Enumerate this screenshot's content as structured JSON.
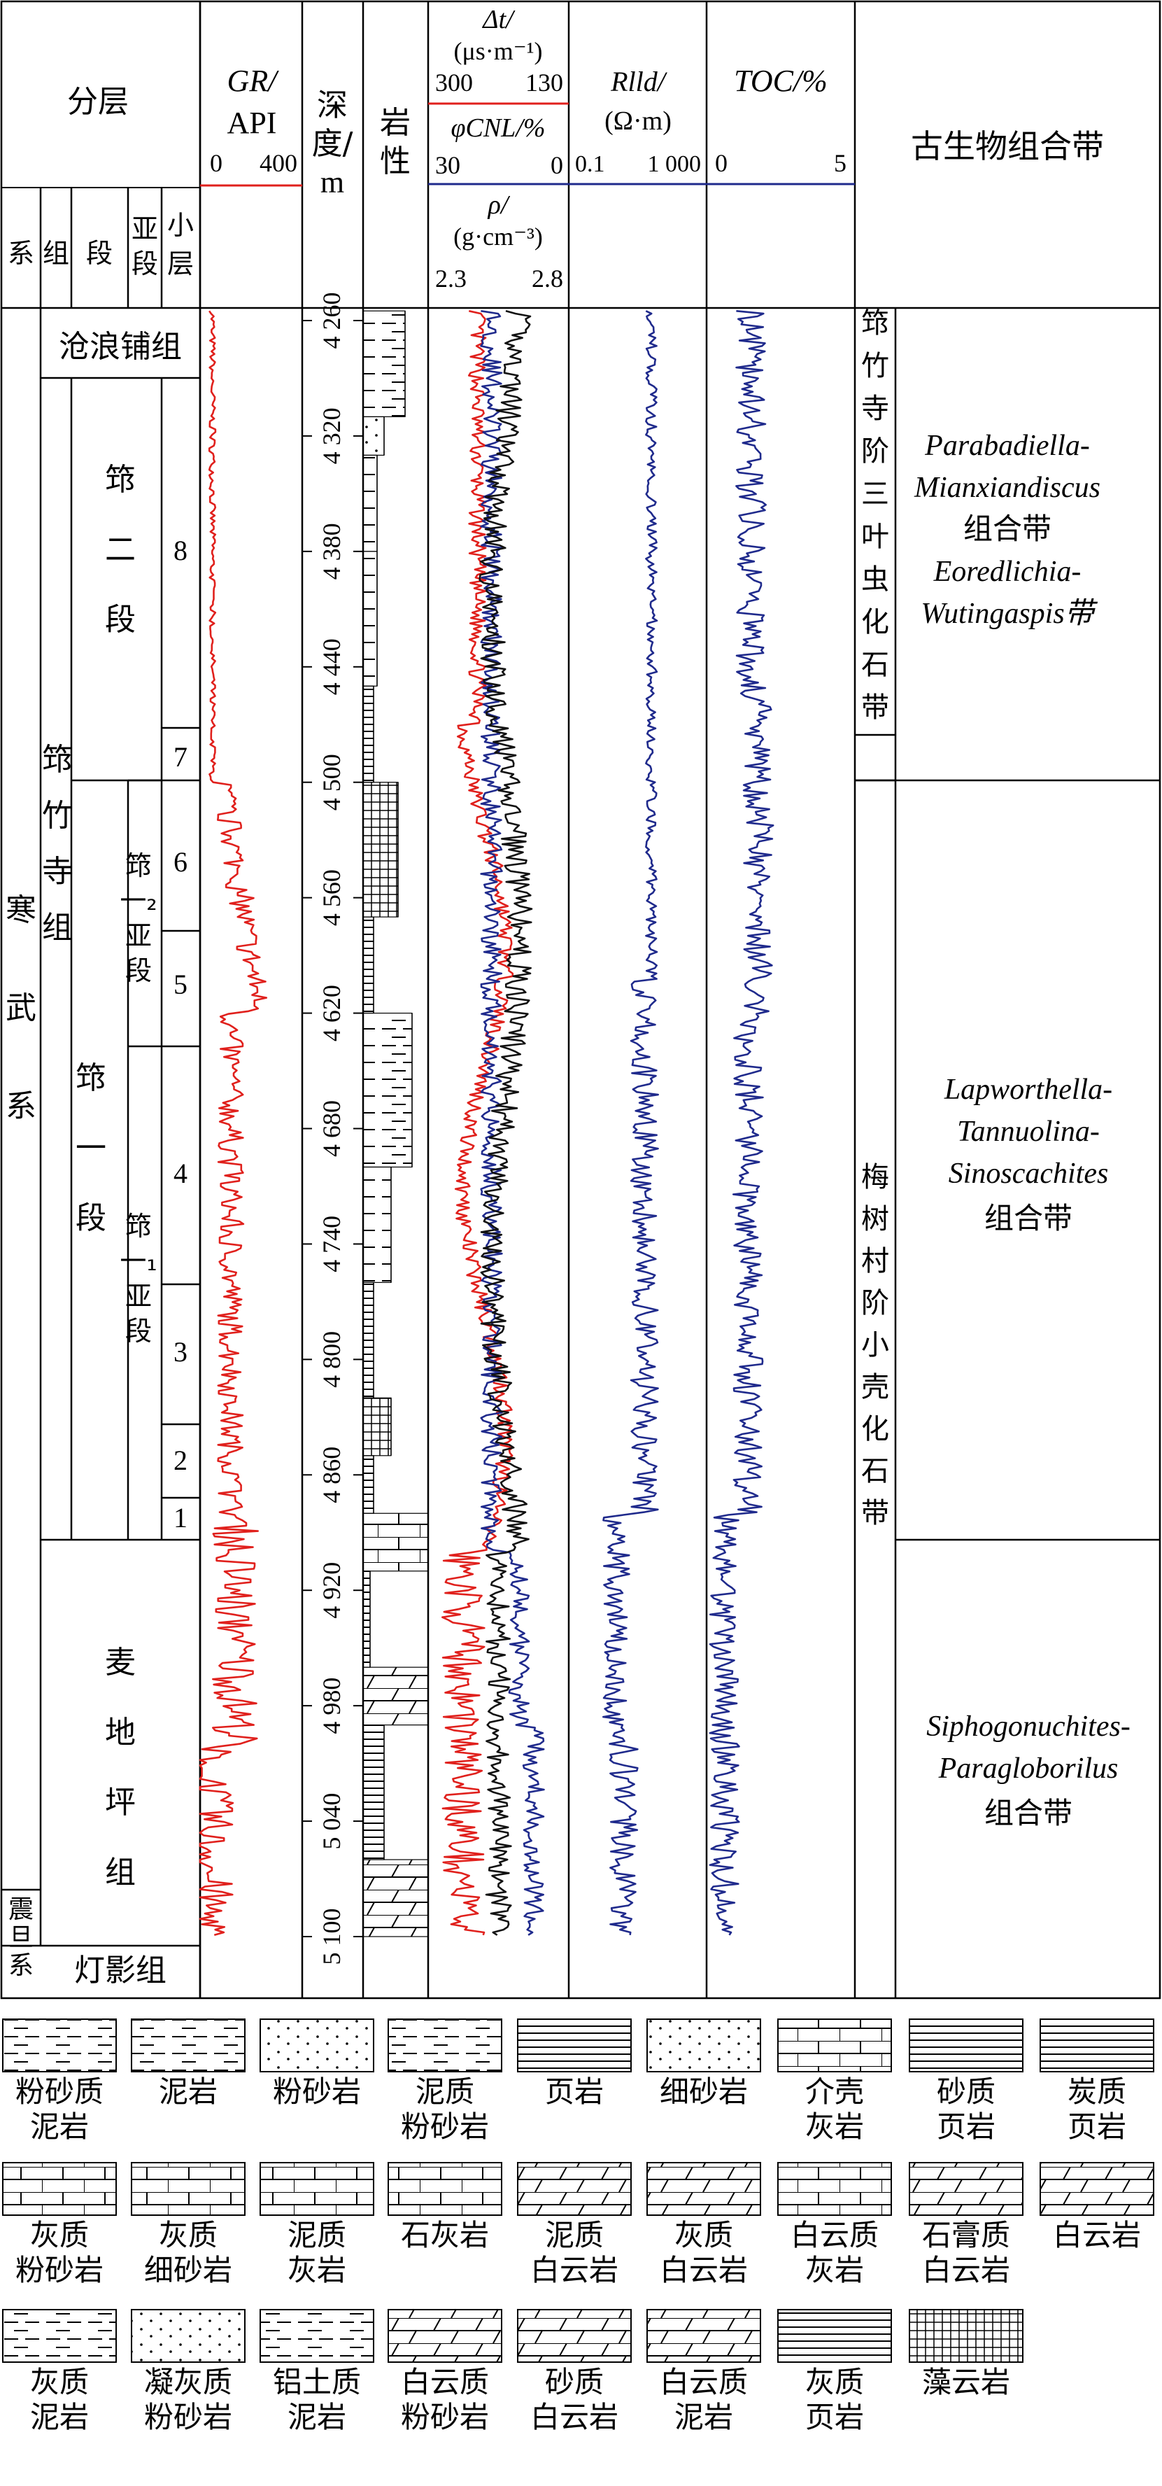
{
  "header": {
    "strat": "分层",
    "strat_levels": [
      "系",
      "组",
      "段",
      "亚段",
      "小层"
    ],
    "gr_title": "GR/",
    "gr_unit": "API",
    "gr_scale": [
      "0",
      "400"
    ],
    "depth_title": [
      "深",
      "度/",
      "m"
    ],
    "lith_title": [
      "岩",
      "性"
    ],
    "dt_title": "Δt/",
    "dt_unit": "(μs·m⁻¹)",
    "dt_scale": [
      "300",
      "130"
    ],
    "cnl_title": "φCNL/%",
    "cnl_scale": [
      "30",
      "0"
    ],
    "den_title": "ρ/",
    "den_unit": "(g·cm⁻³)",
    "den_scale": [
      "2.3",
      "2.8"
    ],
    "rlld_title": "Rlld/",
    "rlld_unit": "(Ω·m)",
    "rlld_scale": [
      "0.1",
      "1 000"
    ],
    "toc_title": "TOC/%",
    "toc_scale": [
      "0",
      "5"
    ],
    "fossil_title": "古生物组合带"
  },
  "strat": {
    "system_cambrian": [
      "寒",
      "武",
      "系"
    ],
    "system_sinian": [
      "震",
      "旦",
      "系"
    ],
    "formations": {
      "canglangpu": "沧浪铺组",
      "qiongzhusi": [
        "筇",
        "竹",
        "寺",
        "组"
      ],
      "maidiping": [
        "麦",
        "地",
        "坪",
        "组"
      ],
      "dengying": "灯影组"
    },
    "members": {
      "q2": [
        "筇",
        "二",
        "段"
      ],
      "q1": [
        "筇",
        "一",
        "段"
      ]
    },
    "submembers": {
      "q1_2": [
        "筇",
        "一₂",
        "亚",
        "段"
      ],
      "q1_1": [
        "筇",
        "一₁",
        "亚",
        "段"
      ]
    },
    "layers": [
      "8",
      "7",
      "6",
      "5",
      "4",
      "3",
      "2",
      "1"
    ]
  },
  "depth_ticks": [
    "4 260",
    "4 320",
    "4 380",
    "4 440",
    "4 500",
    "4 560",
    "4 620",
    "4 680",
    "4 740",
    "4 800",
    "4 860",
    "4 920",
    "4 980",
    "5 040",
    "5 100"
  ],
  "fossils": {
    "stage_upper": [
      "筇",
      "竹",
      "寺",
      "阶",
      "三",
      "叶",
      "虫",
      "化",
      "石",
      "带"
    ],
    "stage_lower": [
      "梅",
      "树",
      "村",
      "阶",
      "小",
      "壳",
      "化",
      "石",
      "带"
    ],
    "zone1": [
      "Parabadiella-",
      "Mianxiandiscus",
      "组合带",
      "Eoredlichia-",
      "Wutingaspis带"
    ],
    "zone2": [
      "Lapworthella-",
      "Tannuolina-",
      "Sinoscachites",
      "组合带"
    ],
    "zone3": [
      "Siphogonuchites-",
      "Paragloborilus",
      "组合带"
    ]
  },
  "legend": [
    {
      "label": [
        "粉砂质",
        "泥岩"
      ],
      "pattern": "silty-mudstone"
    },
    {
      "label": [
        "泥岩"
      ],
      "pattern": "mudstone"
    },
    {
      "label": [
        "粉砂岩"
      ],
      "pattern": "siltstone"
    },
    {
      "label": [
        "泥质",
        "粉砂岩"
      ],
      "pattern": "argillaceous-siltstone"
    },
    {
      "label": [
        "页岩"
      ],
      "pattern": "shale"
    },
    {
      "label": [
        "细砂岩"
      ],
      "pattern": "fine-sandstone"
    },
    {
      "label": [
        "介壳",
        "灰岩"
      ],
      "pattern": "shell-limestone"
    },
    {
      "label": [
        "砂质",
        "页岩"
      ],
      "pattern": "sandy-shale"
    },
    {
      "label": [
        "炭质",
        "页岩"
      ],
      "pattern": "carbonaceous-shale"
    },
    {
      "label": [
        "灰质",
        "粉砂岩"
      ],
      "pattern": "calcareous-siltstone"
    },
    {
      "label": [
        "灰质",
        "细砂岩"
      ],
      "pattern": "calcareous-fine-sandstone"
    },
    {
      "label": [
        "泥质",
        "灰岩"
      ],
      "pattern": "argillaceous-limestone"
    },
    {
      "label": [
        "石灰岩"
      ],
      "pattern": "limestone"
    },
    {
      "label": [
        "泥质",
        "白云岩"
      ],
      "pattern": "argillaceous-dolomite"
    },
    {
      "label": [
        "灰质",
        "白云岩"
      ],
      "pattern": "calcareous-dolomite"
    },
    {
      "label": [
        "白云质",
        "灰岩"
      ],
      "pattern": "dolomitic-limestone"
    },
    {
      "label": [
        "石膏质",
        "白云岩"
      ],
      "pattern": "gypsum-dolomite"
    },
    {
      "label": [
        "白云岩"
      ],
      "pattern": "dolomite"
    },
    {
      "label": [
        "灰质",
        "泥岩"
      ],
      "pattern": "calcareous-mudstone"
    },
    {
      "label": [
        "凝灰质",
        "粉砂岩"
      ],
      "pattern": "tuffaceous-siltstone"
    },
    {
      "label": [
        "铝土质",
        "泥岩"
      ],
      "pattern": "bauxitic-mudstone"
    },
    {
      "label": [
        "白云质",
        "粉砂岩"
      ],
      "pattern": "dolomitic-siltstone"
    },
    {
      "label": [
        "砂质",
        "白云岩"
      ],
      "pattern": "sandy-dolomite"
    },
    {
      "label": [
        "白云质",
        "泥岩"
      ],
      "pattern": "dolomitic-mudstone"
    },
    {
      "label": [
        "灰质",
        "页岩"
      ],
      "pattern": "calcareous-shale"
    },
    {
      "label": [
        "藻云岩"
      ],
      "pattern": "algal-dolomite"
    }
  ],
  "colors": {
    "gr": "#e0201c",
    "ac": "#e0201c",
    "cnl": "#1f2a8c",
    "den": "#111111",
    "rlld": "#1f2a8c",
    "toc": "#1f2a8c"
  }
}
